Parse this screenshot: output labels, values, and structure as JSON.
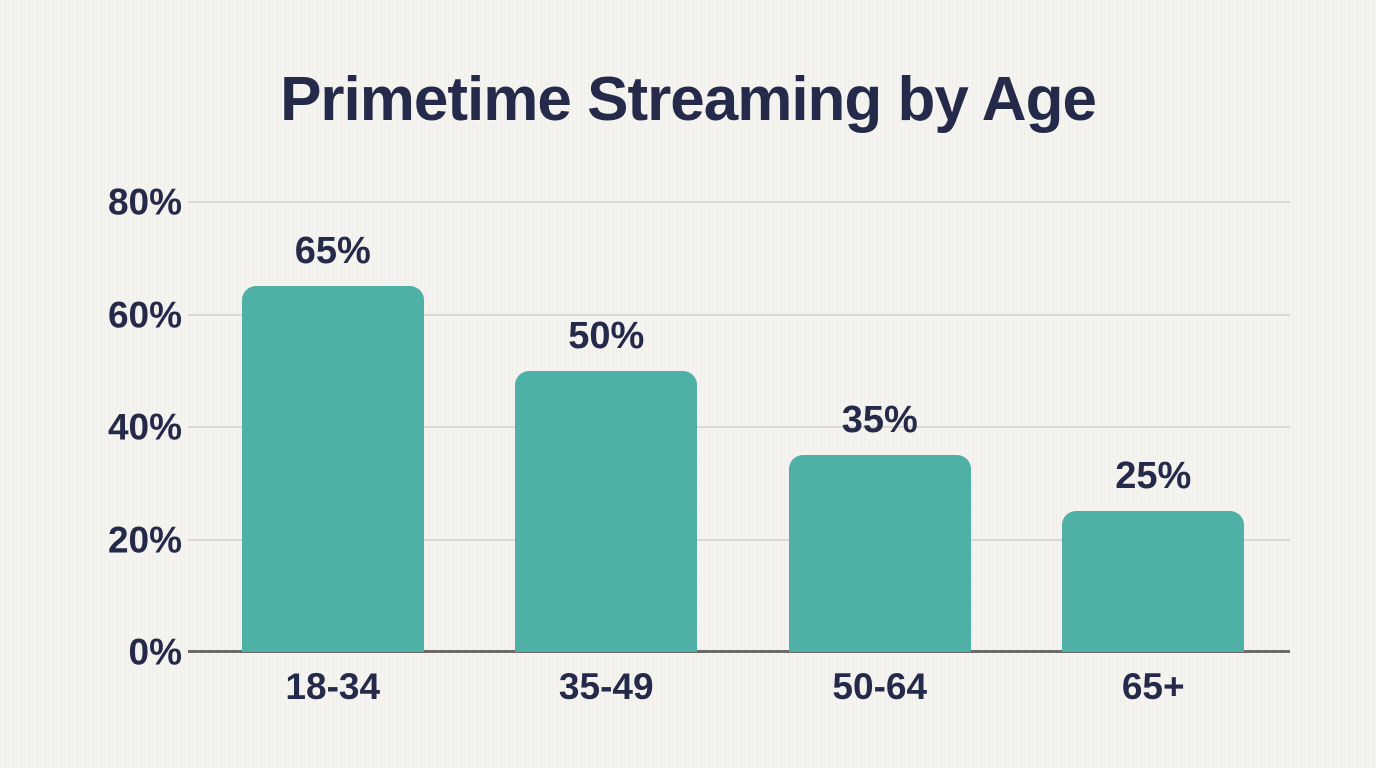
{
  "chart_data": {
    "type": "bar",
    "title": "Primetime Streaming by Age",
    "categories": [
      "18-34",
      "35-49",
      "50-64",
      "65+"
    ],
    "values": [
      65,
      50,
      35,
      25
    ],
    "value_labels": [
      "65%",
      "50%",
      "35%",
      "25%"
    ],
    "xlabel": "",
    "ylabel": "",
    "ylim": [
      0,
      80
    ],
    "yticks": [
      0,
      20,
      40,
      60,
      80
    ],
    "ytick_labels": [
      "0%",
      "20%",
      "40%",
      "60%",
      "80%"
    ],
    "grid": true,
    "legend": false,
    "colors": {
      "bar": "#4FB0A5",
      "text": "#252A4A",
      "grid_line": "#DAD8D2",
      "axis_line": "#6B6A67",
      "background": "#F4F3EF"
    }
  }
}
